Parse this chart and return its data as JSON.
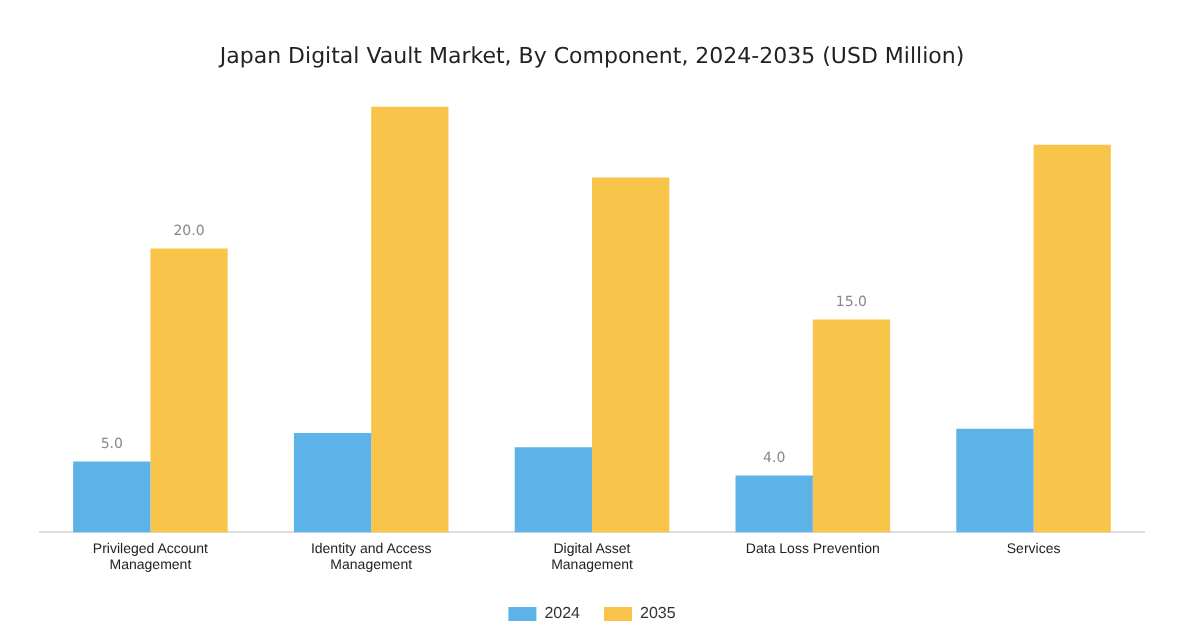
{
  "chart_data": {
    "type": "bar",
    "title": "Japan Digital Vault Market, By Component, 2024-2035 (USD Million)",
    "categories": [
      "Privileged Account Management",
      "Identity and Access Management",
      "Digital Asset Management",
      "Data Loss Prevention",
      "Services"
    ],
    "series": [
      {
        "name": "2024",
        "color": "#5db3e8",
        "values": [
          5.0,
          7.0,
          6.0,
          4.0,
          7.3
        ],
        "value_labels": [
          "5.0",
          null,
          null,
          "4.0",
          null
        ]
      },
      {
        "name": "2035",
        "color": "#f9c44a",
        "values": [
          20.0,
          30.0,
          25.0,
          15.0,
          27.3
        ],
        "value_labels": [
          "20.0",
          null,
          null,
          "15.0",
          null
        ]
      }
    ],
    "legend": "bottom",
    "grid": false
  }
}
